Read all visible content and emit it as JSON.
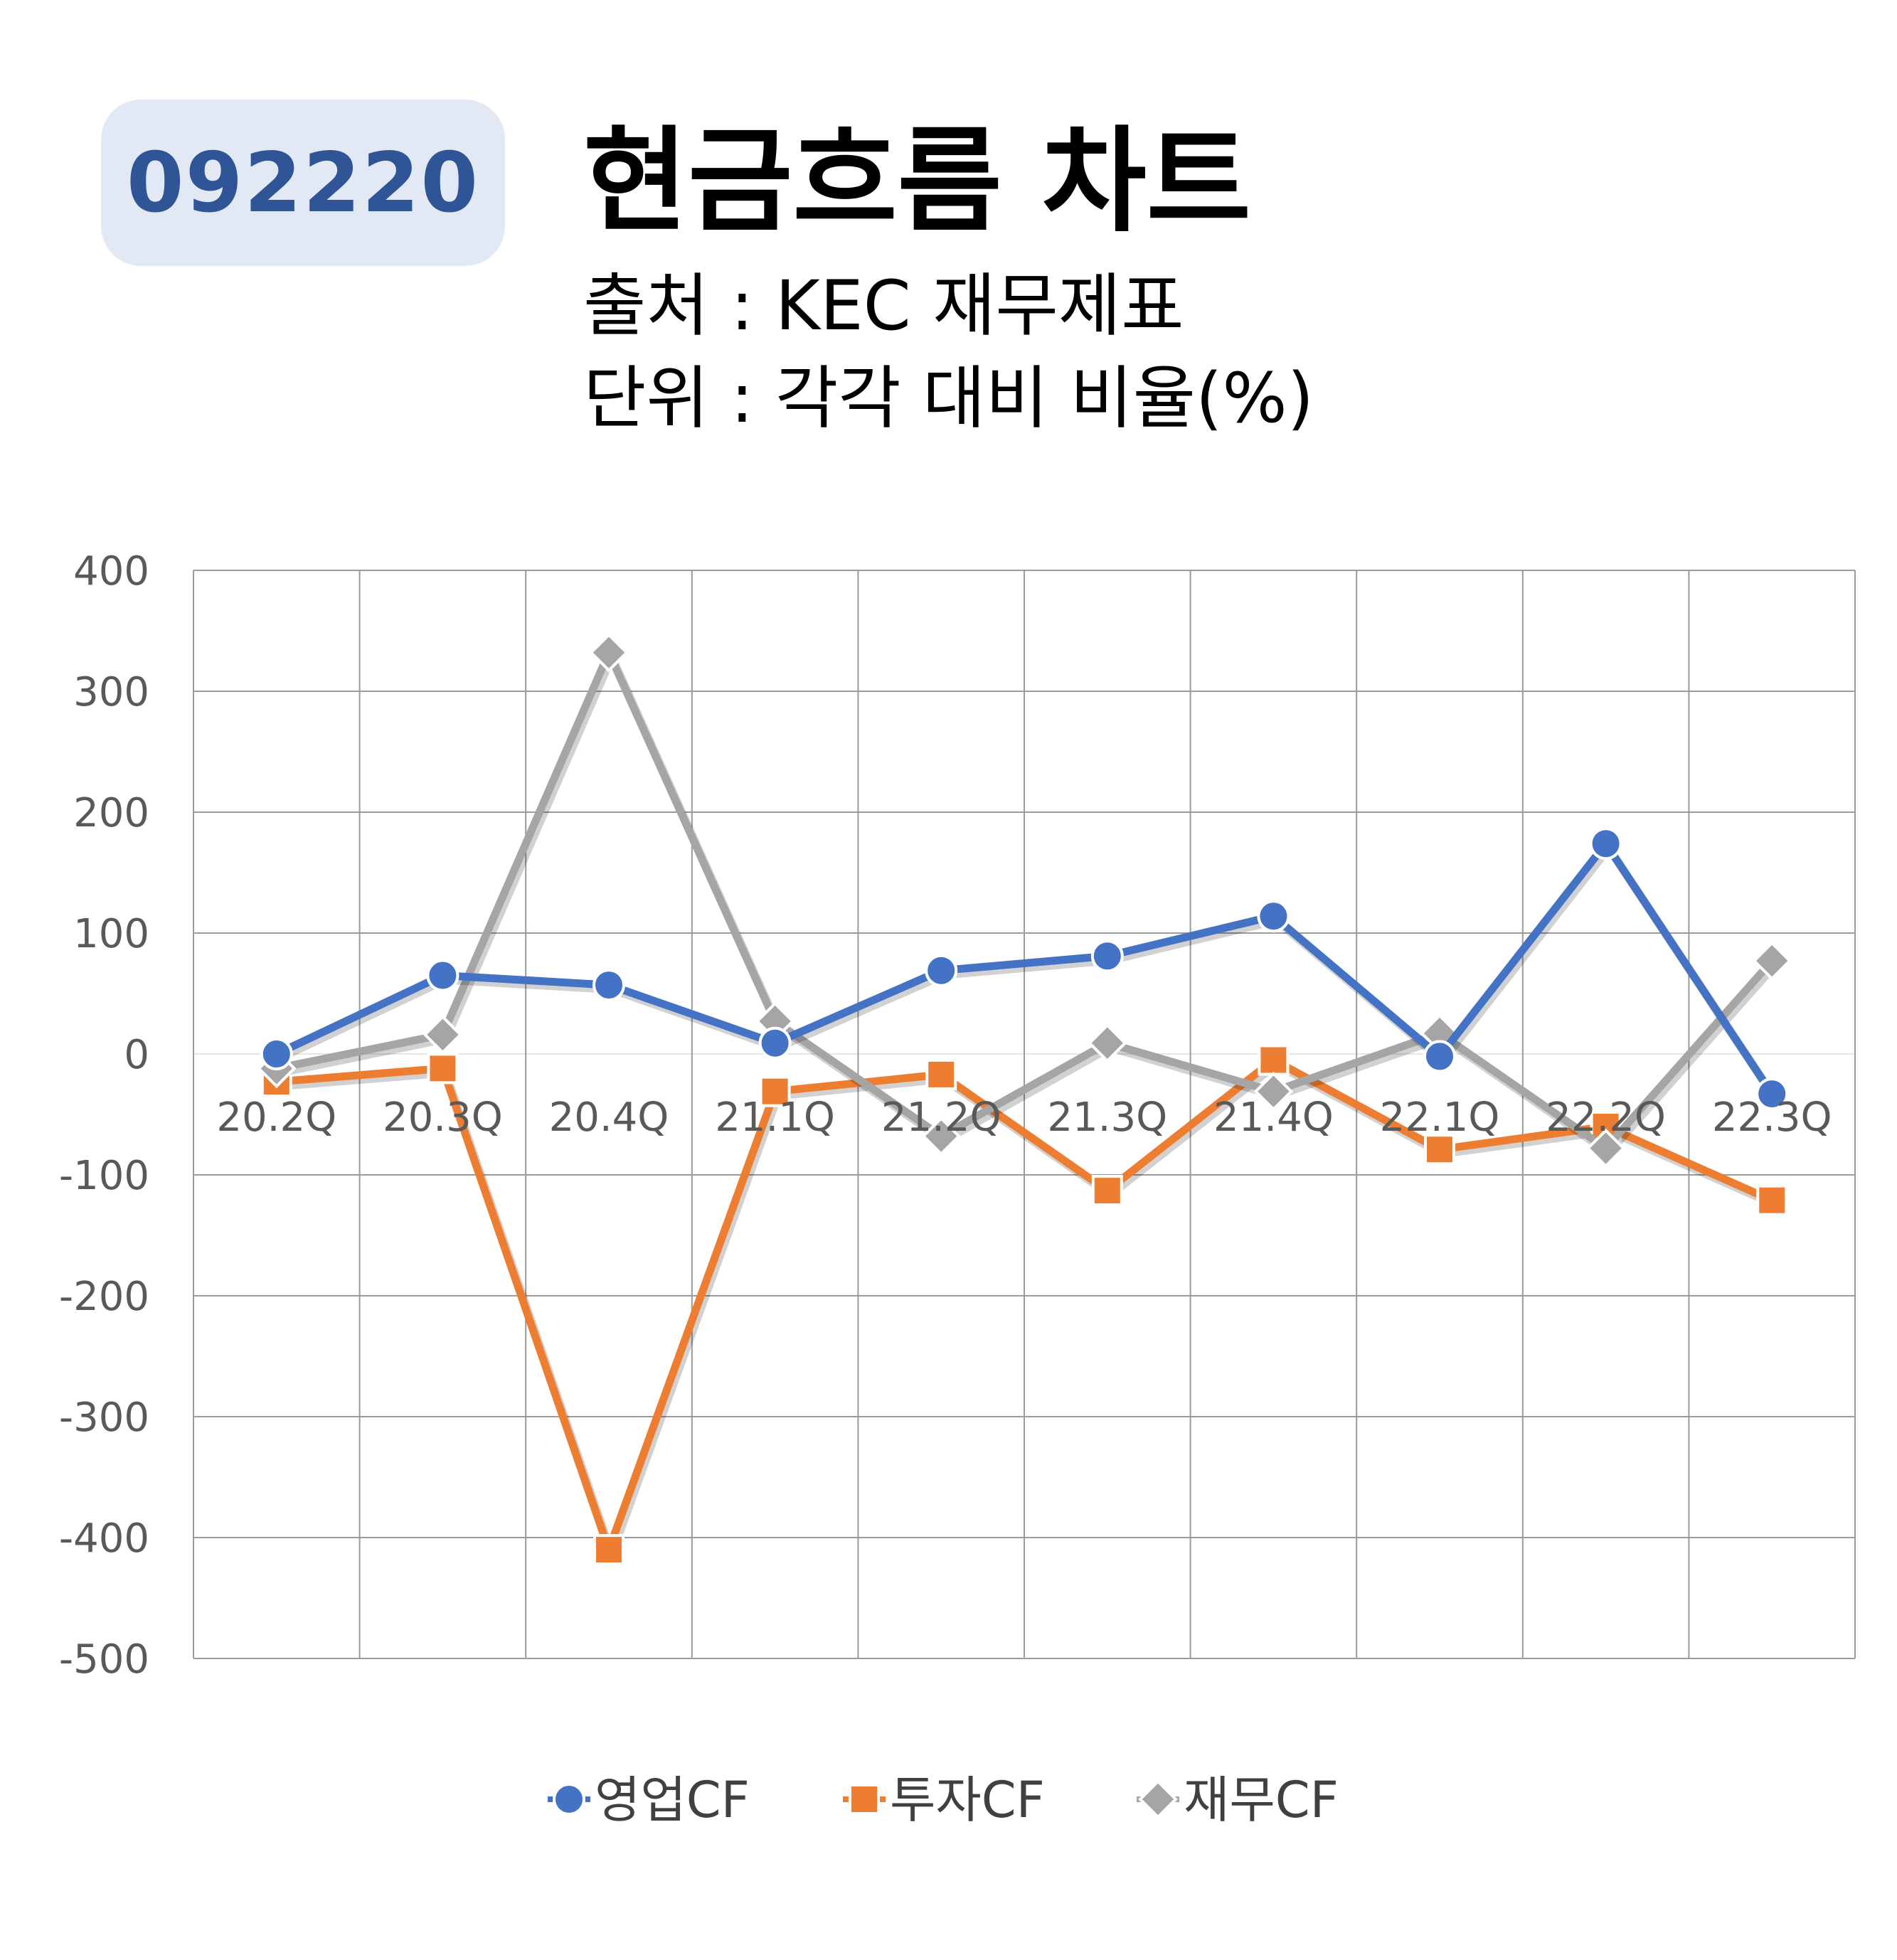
{
  "header": {
    "code": "092220",
    "title": "현금흐름 차트",
    "source": "출처 : KEC 재무제표",
    "unit": "단위 : 각각 대비 비율(%)"
  },
  "chart_data": {
    "type": "line",
    "categories": [
      "20.2Q",
      "20.3Q",
      "20.4Q",
      "21.1Q",
      "21.2Q",
      "21.3Q",
      "21.4Q",
      "22.1Q",
      "22.2Q",
      "22.3Q"
    ],
    "yticks": [
      "400",
      "300",
      "200",
      "100",
      "0",
      "-100",
      "-200",
      "-300",
      "-400",
      "-500"
    ],
    "ylim": [
      -500,
      400
    ],
    "grid": true,
    "legend_position": "bottom",
    "series": [
      {
        "name": "영업CF",
        "color": "#4472c4",
        "marker": "circle",
        "values": [
          0,
          65,
          57,
          9,
          69,
          81,
          114,
          -2,
          174,
          -33
        ]
      },
      {
        "name": "투자CF",
        "color": "#ed7d31",
        "marker": "square",
        "values": [
          -23,
          -12,
          -410,
          -31,
          -17,
          -113,
          -5,
          -79,
          -60,
          -121
        ]
      },
      {
        "name": "재무CF",
        "color": "#a5a5a5",
        "marker": "diamond",
        "values": [
          -12,
          16,
          332,
          27,
          -68,
          9,
          -31,
          17,
          -78,
          77
        ]
      }
    ]
  }
}
